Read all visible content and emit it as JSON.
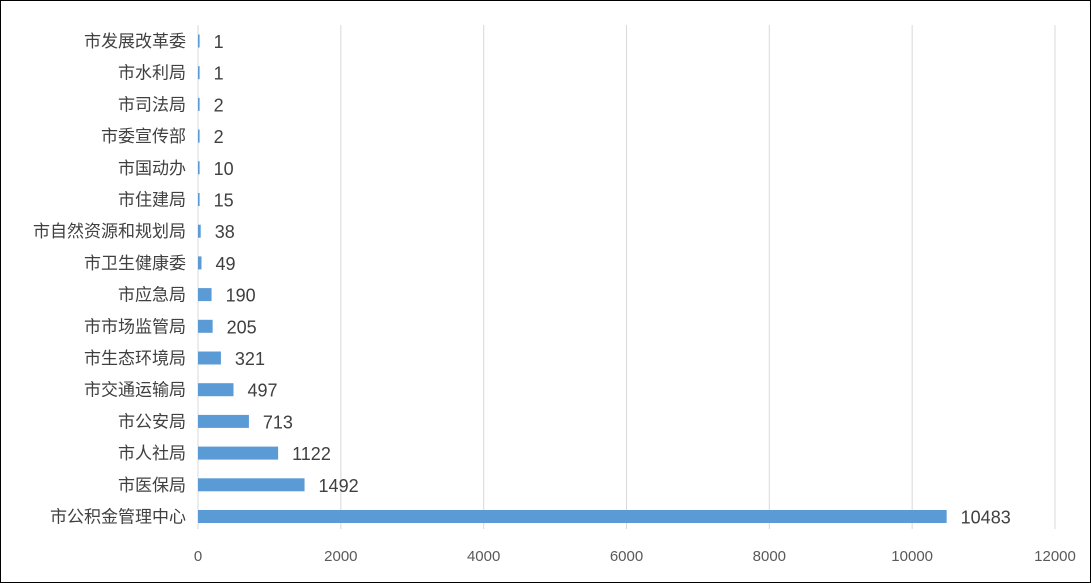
{
  "chart_data": {
    "type": "bar",
    "orientation": "horizontal",
    "categories": [
      "市发展改革委",
      "市水利局",
      "市司法局",
      "市委宣传部",
      "市国动办",
      "市住建局",
      "市自然资源和规划局",
      "市卫生健康委",
      "市应急局",
      "市市场监管局",
      "市生态环境局",
      "市交通运输局",
      "市公安局",
      "市人社局",
      "市医保局",
      "市公积金管理中心"
    ],
    "values": [
      1,
      1,
      2,
      2,
      10,
      15,
      38,
      49,
      190,
      205,
      321,
      497,
      713,
      1122,
      1492,
      10483
    ],
    "value_labels": [
      "1",
      "1",
      "2",
      "2",
      "10",
      "15",
      "38",
      "49",
      "190",
      "205",
      "321",
      "497",
      "713",
      "1122",
      "1492",
      "10483"
    ],
    "xlim": [
      0,
      12000
    ],
    "x_ticks": [
      0,
      2000,
      4000,
      6000,
      8000,
      10000,
      12000
    ],
    "x_tick_labels": [
      "0",
      "2000",
      "4000",
      "6000",
      "8000",
      "10000",
      "12000"
    ],
    "grid": true,
    "legend": false,
    "bar_color": "#5B9BD5",
    "grid_color": "#D9D9D9",
    "text_color": "#404040"
  }
}
